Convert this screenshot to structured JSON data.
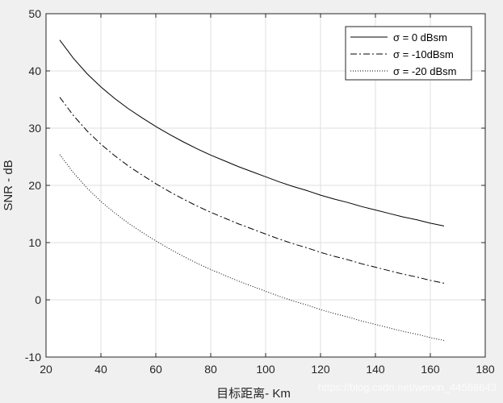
{
  "chart_data": {
    "type": "line",
    "xlabel": "目标距离- Km",
    "ylabel": "SNR - dB",
    "xlim": [
      20,
      180
    ],
    "ylim": [
      -10,
      50
    ],
    "xticks": [
      20,
      40,
      60,
      80,
      100,
      120,
      140,
      160,
      180
    ],
    "yticks": [
      -10,
      0,
      10,
      20,
      30,
      40,
      50
    ],
    "grid": true,
    "legend_position": "top-right",
    "x": [
      25,
      30,
      35,
      40,
      45,
      50,
      55,
      60,
      65,
      70,
      75,
      80,
      85,
      90,
      95,
      100,
      105,
      110,
      115,
      120,
      125,
      130,
      135,
      140,
      145,
      150,
      155,
      160,
      165
    ],
    "series": [
      {
        "name": "σ = 0 dBsm",
        "style": "solid",
        "values": [
          45.4,
          42.2,
          39.5,
          37.2,
          35.2,
          33.4,
          31.8,
          30.3,
          28.9,
          27.6,
          26.4,
          25.3,
          24.3,
          23.3,
          22.4,
          21.5,
          20.6,
          19.8,
          19.1,
          18.3,
          17.6,
          17.0,
          16.3,
          15.7,
          15.1,
          14.5,
          14.0,
          13.4,
          12.9
        ]
      },
      {
        "name": "σ = -10dBsm",
        "style": "dashdot",
        "values": [
          35.4,
          32.2,
          29.5,
          27.2,
          25.2,
          23.4,
          21.8,
          20.3,
          18.9,
          17.6,
          16.4,
          15.3,
          14.3,
          13.3,
          12.4,
          11.5,
          10.6,
          9.8,
          9.1,
          8.3,
          7.6,
          7.0,
          6.3,
          5.7,
          5.1,
          4.5,
          4.0,
          3.4,
          2.9
        ]
      },
      {
        "name": "σ = -20 dBsm",
        "style": "dotted",
        "values": [
          25.4,
          22.2,
          19.5,
          17.2,
          15.2,
          13.4,
          11.8,
          10.3,
          8.9,
          7.6,
          6.4,
          5.3,
          4.3,
          3.3,
          2.4,
          1.5,
          0.6,
          -0.2,
          -0.9,
          -1.7,
          -2.4,
          -3.0,
          -3.7,
          -4.3,
          -4.9,
          -5.5,
          -6.0,
          -6.6,
          -7.1
        ]
      }
    ]
  },
  "watermark": "https://blog.csdn.net/weixin_44566643",
  "colors": {
    "figure_bg": "#f0f0f0",
    "axes_bg": "#ffffff",
    "grid": "#dfdfdf",
    "axis": "#262626",
    "line": "#000000"
  }
}
